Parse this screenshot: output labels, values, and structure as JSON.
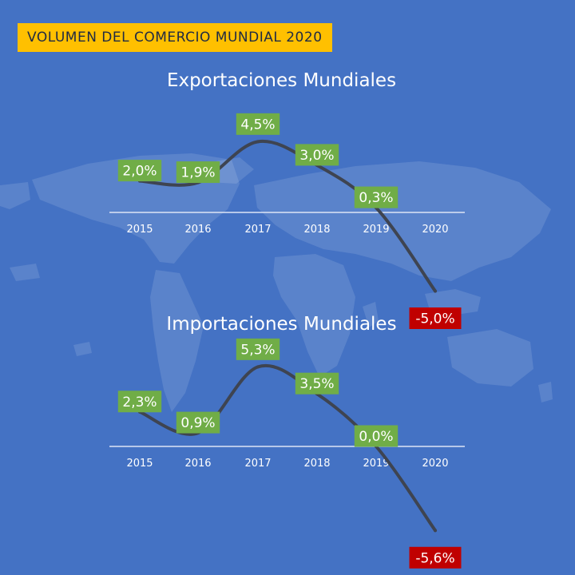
{
  "banner": {
    "title": "VOLUMEN DEL COMERCIO MUNDIAL 2020",
    "color": "#ffc000"
  },
  "colors": {
    "background": "#4472c4",
    "line": "#3e4451",
    "positive": "#70ad47",
    "negative": "#c00000",
    "axis": "#dde5f5"
  },
  "chart_data": [
    {
      "type": "line",
      "title": "Exportaciones Mundiales",
      "categories": [
        "2015",
        "2016",
        "2017",
        "2018",
        "2019",
        "2020"
      ],
      "values": [
        2.0,
        1.9,
        4.5,
        3.0,
        0.3,
        -5.0
      ],
      "data_labels": [
        "2,0%",
        "1,9%",
        "4,5%",
        "3,0%",
        "0,3%",
        "-5,0%"
      ],
      "xlabel": "",
      "ylabel": "",
      "grid": false,
      "legend": "none"
    },
    {
      "type": "line",
      "title": "Importaciones Mundiales",
      "categories": [
        "2015",
        "2016",
        "2017",
        "2018",
        "2019",
        "2020"
      ],
      "values": [
        2.3,
        0.9,
        5.3,
        3.5,
        0.0,
        -5.6
      ],
      "data_labels": [
        "2,3%",
        "0,9%",
        "5,3%",
        "3,5%",
        "0,0%",
        "-5,6%"
      ],
      "xlabel": "",
      "ylabel": "",
      "grid": false,
      "legend": "none"
    }
  ]
}
